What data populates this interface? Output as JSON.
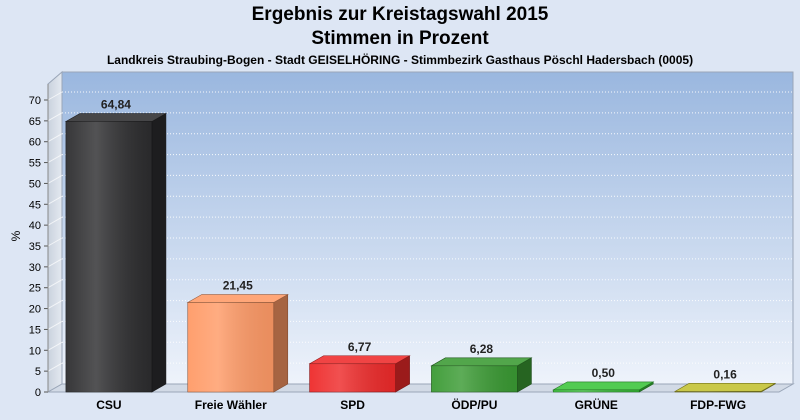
{
  "chart_data": {
    "type": "bar",
    "title": "Ergebnis zur Kreistagswahl 2015",
    "subtitle": "Stimmen in Prozent",
    "caption": "Landkreis Straubing-Bogen - Stadt GEISELHÖRING - Stimmbezirk Gasthaus Pöschl Hadersbach (0005)",
    "ylabel": "%",
    "ylim": [
      0,
      70
    ],
    "yticks": [
      0,
      5,
      10,
      15,
      20,
      25,
      30,
      35,
      40,
      45,
      50,
      55,
      60,
      65,
      70
    ],
    "grid": true,
    "categories": [
      "CSU",
      "Freie Wähler",
      "SPD",
      "ÖDP/PU",
      "GRÜNE",
      "FDP-FWG"
    ],
    "values": [
      64.84,
      21.45,
      6.77,
      6.28,
      0.5,
      0.16
    ],
    "value_labels": [
      "64,84",
      "21,45",
      "6,77",
      "6,28",
      "0,50",
      "0,16"
    ],
    "colors": [
      "#2d2d2f",
      "#ff9a66",
      "#ee2a2a",
      "#3a9a33",
      "#3ac43a",
      "#c2c030"
    ]
  }
}
